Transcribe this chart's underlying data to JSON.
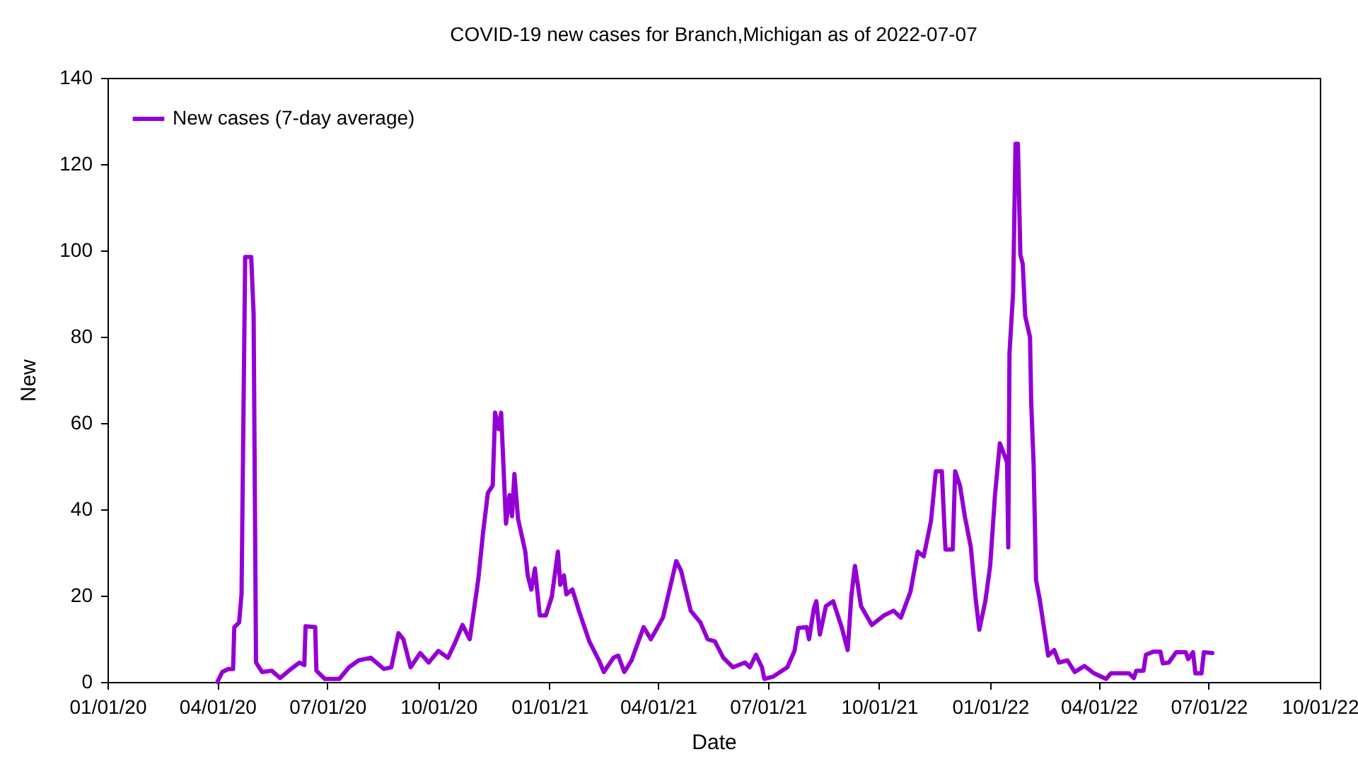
{
  "chart_data": {
    "type": "line",
    "title": "COVID-19 new cases for Branch,Michigan as of 2022-07-07",
    "xlabel": "Date",
    "ylabel": "New",
    "xlim": [
      "2020-01-01",
      "2022-10-01"
    ],
    "xticks": [
      {
        "value": "2020-01-01",
        "label": "01/01/20"
      },
      {
        "value": "2020-04-01",
        "label": "04/01/20"
      },
      {
        "value": "2020-07-01",
        "label": "07/01/20"
      },
      {
        "value": "2020-10-01",
        "label": "10/01/20"
      },
      {
        "value": "2021-01-01",
        "label": "01/01/21"
      },
      {
        "value": "2021-04-01",
        "label": "04/01/21"
      },
      {
        "value": "2021-07-01",
        "label": "07/01/21"
      },
      {
        "value": "2021-10-01",
        "label": "10/01/21"
      },
      {
        "value": "2022-01-01",
        "label": "01/01/22"
      },
      {
        "value": "2022-04-01",
        "label": "04/01/22"
      },
      {
        "value": "2022-07-01",
        "label": "07/01/22"
      },
      {
        "value": "2022-10-01",
        "label": "10/01/22"
      }
    ],
    "ylim": [
      0,
      140
    ],
    "yticks": [
      0,
      20,
      40,
      60,
      80,
      100,
      120,
      140
    ],
    "grid": false,
    "legend": "top left",
    "marker": "none",
    "line_style": "solid",
    "x": [
      "2020-04-01",
      "2020-04-05",
      "2020-04-10",
      "2020-04-14",
      "2020-04-15",
      "2020-04-19",
      "2020-04-21",
      "2020-04-24",
      "2020-04-29",
      "2020-05-01",
      "2020-05-03",
      "2020-05-08",
      "2020-05-16",
      "2020-05-23",
      "2020-05-31",
      "2020-06-08",
      "2020-06-12",
      "2020-06-13",
      "2020-06-21",
      "2020-06-22",
      "2020-06-29",
      "2020-07-11",
      "2020-07-19",
      "2020-07-27",
      "2020-08-06",
      "2020-08-17",
      "2020-08-23",
      "2020-08-29",
      "2020-09-02",
      "2020-09-08",
      "2020-09-16",
      "2020-09-23",
      "2020-10-01",
      "2020-10-09",
      "2020-10-15",
      "2020-10-21",
      "2020-10-27",
      "2020-11-03",
      "2020-11-07",
      "2020-11-11",
      "2020-11-15",
      "2020-11-17",
      "2020-11-20",
      "2020-11-22",
      "2020-11-26",
      "2020-11-29",
      "2020-12-01",
      "2020-12-03",
      "2020-12-06",
      "2020-12-12",
      "2020-12-14",
      "2020-12-17",
      "2020-12-20",
      "2020-12-24",
      "2020-12-29",
      "2021-01-03",
      "2021-01-08",
      "2021-01-10",
      "2021-01-13",
      "2021-01-15",
      "2021-01-20",
      "2021-01-26",
      "2021-02-03",
      "2021-02-11",
      "2021-02-15",
      "2021-02-23",
      "2021-02-27",
      "2021-03-04",
      "2021-03-10",
      "2021-03-20",
      "2021-03-26",
      "2021-04-05",
      "2021-04-16",
      "2021-04-20",
      "2021-04-28",
      "2021-05-06",
      "2021-05-12",
      "2021-05-18",
      "2021-05-25",
      "2021-06-02",
      "2021-06-12",
      "2021-06-16",
      "2021-06-21",
      "2021-06-26",
      "2021-06-28",
      "2021-07-05",
      "2021-07-17",
      "2021-07-23",
      "2021-07-26",
      "2021-08-02",
      "2021-08-04",
      "2021-08-08",
      "2021-08-10",
      "2021-08-13",
      "2021-08-18",
      "2021-08-24",
      "2021-08-31",
      "2021-09-05",
      "2021-09-08",
      "2021-09-11",
      "2021-09-16",
      "2021-09-25",
      "2021-10-05",
      "2021-10-13",
      "2021-10-19",
      "2021-10-27",
      "2021-11-02",
      "2021-11-07",
      "2021-11-13",
      "2021-11-17",
      "2021-11-22",
      "2021-11-25",
      "2021-12-01",
      "2021-12-03",
      "2021-12-07",
      "2021-12-11",
      "2021-12-16",
      "2021-12-20",
      "2021-12-23",
      "2021-12-28",
      "2022-01-01",
      "2022-01-05",
      "2022-01-09",
      "2022-01-15",
      "2022-01-16",
      "2022-01-17",
      "2022-01-20",
      "2022-01-22",
      "2022-01-24",
      "2022-01-26",
      "2022-01-28",
      "2022-01-30",
      "2022-02-03",
      "2022-02-04",
      "2022-02-06",
      "2022-02-08",
      "2022-02-11",
      "2022-02-16",
      "2022-02-18",
      "2022-02-23",
      "2022-02-27",
      "2022-03-06",
      "2022-03-12",
      "2022-03-20",
      "2022-03-28",
      "2022-04-07",
      "2022-04-11",
      "2022-04-26",
      "2022-04-30",
      "2022-05-02",
      "2022-05-08",
      "2022-05-10",
      "2022-05-16",
      "2022-05-22",
      "2022-05-24",
      "2022-05-29",
      "2022-06-04",
      "2022-06-12",
      "2022-06-14",
      "2022-06-18",
      "2022-06-20",
      "2022-06-25",
      "2022-06-27",
      "2022-07-04"
    ],
    "series": [
      {
        "name": "New cases (7-day average)",
        "color": "#9400d3",
        "values": [
          0,
          2.3,
          3,
          3,
          12.7,
          13.8,
          20.3,
          98.5,
          98.5,
          85.3,
          4.5,
          2.3,
          2.6,
          0.9,
          2.8,
          4.5,
          3.9,
          12.9,
          12.7,
          2.6,
          0.7,
          0.7,
          3.4,
          5,
          5.6,
          3,
          3.4,
          11.3,
          9.9,
          3.4,
          6.7,
          4.5,
          7.2,
          5.6,
          9.2,
          13.2,
          9.9,
          23.6,
          34.5,
          43.8,
          45.5,
          62.4,
          58.6,
          62.4,
          36.7,
          43.3,
          38.4,
          48.2,
          37.8,
          30.2,
          24.7,
          21.4,
          26.3,
          15.4,
          15.4,
          19.8,
          30.2,
          22.5,
          24.7,
          20.3,
          21.4,
          16,
          9.4,
          5,
          2.3,
          5.6,
          6.1,
          2.3,
          5,
          12.7,
          9.9,
          14.9,
          28,
          25.8,
          16.5,
          13.8,
          9.9,
          9.4,
          5.6,
          3.4,
          4.5,
          3.4,
          6.3,
          3.4,
          0.7,
          1.2,
          3.4,
          7.2,
          12.5,
          12.7,
          9.9,
          17,
          18.7,
          11,
          17.6,
          18.7,
          12.7,
          7.4,
          19.8,
          26.9,
          17.6,
          13.2,
          15.4,
          16.5,
          14.9,
          20.9,
          30.2,
          29.1,
          37.3,
          48.8,
          48.8,
          30.7,
          30.7,
          48.8,
          45.5,
          38.4,
          31.2,
          19.2,
          12.1,
          18.7,
          26.9,
          43.3,
          55.3,
          50.9,
          31.2,
          76.1,
          90.3,
          124.7,
          124.7,
          99,
          96.8,
          84.8,
          79.9,
          64.6,
          50.4,
          23.6,
          19.2,
          9.9,
          6.1,
          7.4,
          4.5,
          5,
          2.3,
          3.7,
          2,
          0.7,
          2,
          2,
          0.9,
          2.6,
          2.6,
          6.3,
          7,
          7,
          4.3,
          4.5,
          6.9,
          6.9,
          5.3,
          6.9,
          2,
          2,
          6.9,
          6.7
        ]
      }
    ]
  }
}
